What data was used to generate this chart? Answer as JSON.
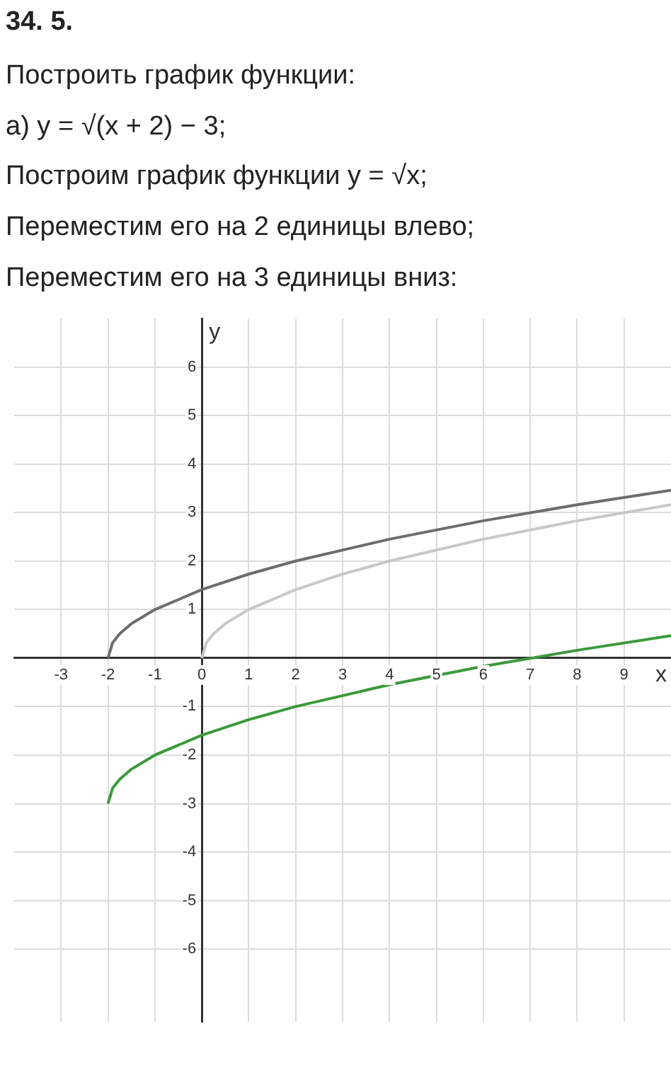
{
  "chart_data": {
    "type": "line",
    "title": "34. 5.",
    "annotations": [
      "Построить график функции:",
      "а) y = √(x + 2) − 3;",
      "Построим график функции y = √x;",
      "Переместим его на 2 единицы влево;",
      "Переместим его на 3 единицы вниз:"
    ],
    "xlabel": "x",
    "ylabel": "y",
    "series": [
      {
        "color": "#c8c8c8",
        "x": [
          0,
          0.1,
          0.25,
          0.5,
          1,
          2,
          3,
          4,
          6,
          8,
          10
        ],
        "values": [
          0,
          0.32,
          0.5,
          0.71,
          1,
          1.41,
          1.73,
          2,
          2.45,
          2.83,
          3.16
        ]
      },
      {
        "color": "#6d6d6d",
        "x": [
          -2,
          -1.9,
          -1.75,
          -1.5,
          -1,
          0,
          1,
          2,
          4,
          6,
          8,
          10
        ],
        "values": [
          0,
          0.32,
          0.5,
          0.71,
          1,
          1.41,
          1.73,
          2,
          2.45,
          2.83,
          3.16,
          3.46
        ]
      },
      {
        "color": "#3a9a3a",
        "x": [
          -2,
          -1.9,
          -1.75,
          -1.5,
          -1,
          0,
          1,
          2,
          4,
          6,
          8,
          10
        ],
        "values": [
          -3,
          -2.68,
          -2.5,
          -2.29,
          -2,
          -1.59,
          -1.27,
          -1,
          -0.55,
          -0.17,
          0.16,
          0.46
        ]
      }
    ],
    "xlim": [
      -4,
      10
    ],
    "ylim": [
      -7.5,
      7
    ],
    "xticks": [
      -3,
      -2,
      -1,
      0,
      1,
      2,
      3,
      4,
      5,
      6,
      7,
      8,
      9
    ],
    "yticks": [
      -6,
      -5,
      -4,
      -3,
      -2,
      -1,
      1,
      2,
      3,
      4,
      5,
      6
    ],
    "grid": true,
    "marker": "none",
    "line_style": "solid"
  }
}
